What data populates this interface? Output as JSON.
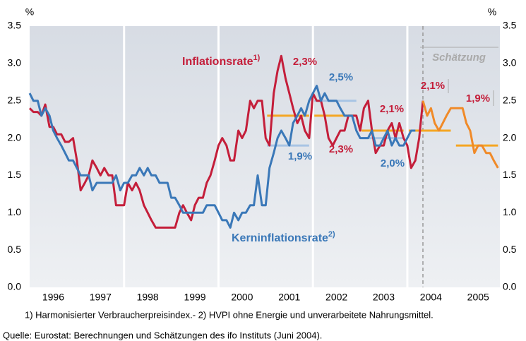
{
  "chart_data": {
    "type": "line",
    "y_unit": "%",
    "x": [
      1996,
      1996.08,
      1996.17,
      1996.25,
      1996.33,
      1996.42,
      1996.5,
      1996.58,
      1996.67,
      1996.75,
      1996.83,
      1996.92,
      1997,
      1997.08,
      1997.17,
      1997.25,
      1997.33,
      1997.42,
      1997.5,
      1997.58,
      1997.67,
      1997.75,
      1997.83,
      1997.92,
      1998,
      1998.08,
      1998.17,
      1998.25,
      1998.33,
      1998.42,
      1998.5,
      1998.58,
      1998.67,
      1998.75,
      1998.83,
      1998.92,
      1999,
      1999.08,
      1999.17,
      1999.25,
      1999.33,
      1999.42,
      1999.5,
      1999.58,
      1999.67,
      1999.75,
      1999.83,
      1999.92,
      2000,
      2000.08,
      2000.17,
      2000.25,
      2000.33,
      2000.42,
      2000.5,
      2000.58,
      2000.67,
      2000.75,
      2000.83,
      2000.92,
      2001,
      2001.08,
      2001.17,
      2001.25,
      2001.33,
      2001.42,
      2001.5,
      2001.58,
      2001.67,
      2001.75,
      2001.83,
      2001.92,
      2002,
      2002.08,
      2002.17,
      2002.25,
      2002.33,
      2002.42,
      2002.5,
      2002.58,
      2002.67,
      2002.75,
      2002.83,
      2002.92,
      2003,
      2003.08,
      2003.17,
      2003.25,
      2003.33,
      2003.42,
      2003.5,
      2003.58,
      2003.67,
      2003.75,
      2003.83,
      2003.92,
      2004,
      2004.08,
      2004.17,
      2004.25,
      2004.33,
      2004.42,
      2004.5,
      2004.58,
      2004.67,
      2004.75,
      2004.83,
      2004.92,
      2005,
      2005.08,
      2005.17,
      2005.25,
      2005.33,
      2005.42,
      2005.5,
      2005.58,
      2005.67,
      2005.75,
      2005.83,
      2005.92
    ],
    "series": [
      {
        "name": "Inflationsrate",
        "note": "1)",
        "color": "#c41e3a",
        "values": [
          2.4,
          2.35,
          2.35,
          2.3,
          2.45,
          2.15,
          2.15,
          2.05,
          2.05,
          1.95,
          1.95,
          2.0,
          1.7,
          1.3,
          1.4,
          1.5,
          1.7,
          1.6,
          1.5,
          1.6,
          1.5,
          1.5,
          1.1,
          1.1,
          1.1,
          1.4,
          1.3,
          1.4,
          1.3,
          1.1,
          1.0,
          0.9,
          0.8,
          0.8,
          0.8,
          0.8,
          0.8,
          0.8,
          1.0,
          1.1,
          1.0,
          0.9,
          1.1,
          1.2,
          1.2,
          1.4,
          1.5,
          1.7,
          1.9,
          2.0,
          1.9,
          1.7,
          1.7,
          2.1,
          2.0,
          2.1,
          2.5,
          2.4,
          2.5,
          2.5,
          2.0,
          1.9,
          2.6,
          2.9,
          3.1,
          2.8,
          2.6,
          2.4,
          2.2,
          2.3,
          2.1,
          2.0,
          2.6,
          2.5,
          2.5,
          2.3,
          2.0,
          1.9,
          2.0,
          2.1,
          2.1,
          2.3,
          2.3,
          2.3,
          2.1,
          2.4,
          2.5,
          2.1,
          1.8,
          1.9,
          1.9,
          2.1,
          2.2,
          2.0,
          2.2,
          2.0,
          1.9,
          1.6,
          1.7,
          2.0,
          2.5,
          null,
          null,
          null,
          null,
          null,
          null,
          null,
          null,
          null,
          null,
          null,
          null,
          null,
          null,
          null,
          null,
          null,
          null,
          null
        ]
      },
      {
        "name": "Kerninflationsrate",
        "note": "2)",
        "color": "#3a78b8",
        "values": [
          2.6,
          2.5,
          2.5,
          2.3,
          2.4,
          2.3,
          2.1,
          2.0,
          1.9,
          1.8,
          1.7,
          1.7,
          1.6,
          1.5,
          1.5,
          1.5,
          1.3,
          1.4,
          1.4,
          1.4,
          1.4,
          1.4,
          1.5,
          1.3,
          1.4,
          1.4,
          1.5,
          1.5,
          1.6,
          1.5,
          1.6,
          1.5,
          1.5,
          1.4,
          1.4,
          1.4,
          1.2,
          1.2,
          1.1,
          1.0,
          1.0,
          1.0,
          1.0,
          1.0,
          1.0,
          1.1,
          1.1,
          1.1,
          1.0,
          0.9,
          0.9,
          0.8,
          1.0,
          0.9,
          1.0,
          1.0,
          1.1,
          1.1,
          1.5,
          1.1,
          1.1,
          1.6,
          1.8,
          2.0,
          2.1,
          2.0,
          1.9,
          2.2,
          2.3,
          2.4,
          2.3,
          2.5,
          2.6,
          2.7,
          2.5,
          2.6,
          2.5,
          2.5,
          2.5,
          2.4,
          2.3,
          2.3,
          2.3,
          2.1,
          2.0,
          2.0,
          2.0,
          2.1,
          1.9,
          1.9,
          2.0,
          2.1,
          1.9,
          2.0,
          1.9,
          1.9,
          2.0,
          2.1,
          2.1,
          null,
          null,
          null,
          null,
          null,
          null,
          null,
          null,
          null,
          null,
          null,
          null,
          null,
          null,
          null,
          null,
          null,
          null,
          null,
          null,
          null
        ]
      },
      {
        "name": "Schätzung",
        "color": "#f08a28",
        "values": [
          null,
          null,
          null,
          null,
          null,
          null,
          null,
          null,
          null,
          null,
          null,
          null,
          null,
          null,
          null,
          null,
          null,
          null,
          null,
          null,
          null,
          null,
          null,
          null,
          null,
          null,
          null,
          null,
          null,
          null,
          null,
          null,
          null,
          null,
          null,
          null,
          null,
          null,
          null,
          null,
          null,
          null,
          null,
          null,
          null,
          null,
          null,
          null,
          null,
          null,
          null,
          null,
          null,
          null,
          null,
          null,
          null,
          null,
          null,
          null,
          null,
          null,
          null,
          null,
          null,
          null,
          null,
          null,
          null,
          null,
          null,
          null,
          null,
          null,
          null,
          null,
          null,
          null,
          null,
          null,
          null,
          null,
          null,
          null,
          null,
          null,
          null,
          null,
          null,
          null,
          null,
          null,
          null,
          null,
          null,
          null,
          null,
          null,
          null,
          null,
          2.5,
          2.3,
          2.4,
          2.2,
          2.1,
          2.2,
          2.3,
          2.4,
          2.4,
          2.4,
          2.4,
          2.2,
          2.1,
          1.8,
          1.9,
          1.9,
          1.8,
          1.8,
          1.7,
          1.6
        ]
      }
    ],
    "averages": {
      "years": [
        2001,
        2002,
        2003,
        2004,
        2005
      ],
      "series": [
        {
          "color": "#f5a623",
          "label_color": "#c41e3a",
          "values": [
            2.3,
            2.3,
            2.1,
            2.1,
            1.9
          ],
          "value_labels": [
            "2,3%",
            "2,3%",
            "2,1%",
            "2,1%",
            "1,9%"
          ]
        },
        {
          "color": "#a8c4e4",
          "label_color": "#3a78b8",
          "values": [
            1.9,
            2.5,
            2.0,
            null,
            null
          ],
          "value_labels": [
            "1,9%",
            "2,5%",
            "2,0%",
            null,
            null
          ]
        }
      ]
    },
    "xlim": [
      1996,
      2005.96
    ],
    "xticks": [
      {
        "value": 1996.5,
        "label": "1996"
      },
      {
        "value": 1997.5,
        "label": "1997"
      },
      {
        "value": 1998.5,
        "label": "1998"
      },
      {
        "value": 1999.5,
        "label": "1999"
      },
      {
        "value": 2000.5,
        "label": "2000"
      },
      {
        "value": 2001.5,
        "label": "2001"
      },
      {
        "value": 2002.5,
        "label": "2002"
      },
      {
        "value": 2003.5,
        "label": "2003"
      },
      {
        "value": 2004.5,
        "label": "2004"
      },
      {
        "value": 2005.5,
        "label": "2005"
      }
    ],
    "vlines": [
      1998,
      2000,
      2002,
      2004
    ],
    "ylim": [
      0,
      3.5
    ],
    "yticks": [
      {
        "value": 0,
        "label": "0.0"
      },
      {
        "value": 0.5,
        "label": "0.5"
      },
      {
        "value": 1,
        "label": "1.0"
      },
      {
        "value": 1.5,
        "label": "1.5"
      },
      {
        "value": 2,
        "label": "2.0"
      },
      {
        "value": 2.5,
        "label": "2.5"
      },
      {
        "value": 3,
        "label": "3.0"
      },
      {
        "value": 3.5,
        "label": "3.5"
      }
    ],
    "footnote": "1) Harmonisierter Verbraucherpreisindex.- 2) HVPI ohne Energie und unverarbeitete Nahrungsmittel.",
    "source": "Quelle: Eurostat: Berechnungen und Schätzungen des ifo Instituts (Juni 2004)."
  }
}
